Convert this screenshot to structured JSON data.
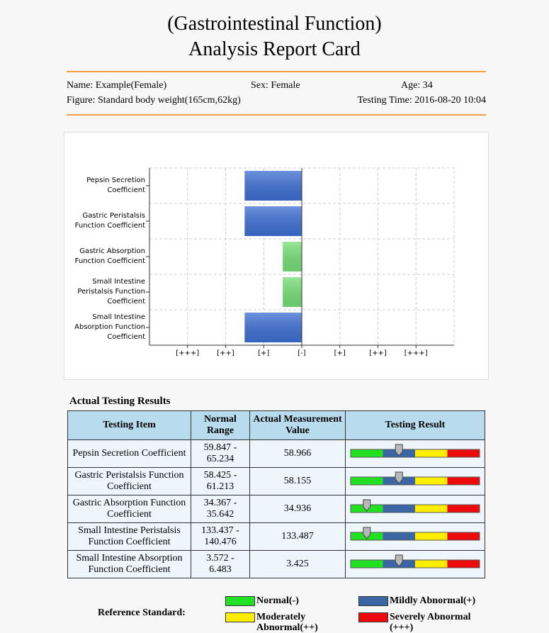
{
  "header": {
    "title": [
      "(Gastrointestinal Function)",
      "Analysis Report Card"
    ],
    "name": "Name: Example(Female)",
    "sex": "Sex: Female",
    "age": "Age: 34",
    "figure": "Figure: Standard body weight(165cm,62kg)",
    "testing_time": "Testing Time: 2016-08-20 10:04"
  },
  "chart_data": {
    "type": "hbar",
    "categories": [
      "Pepsin Secretion Coefficient",
      "Gastric Peristalsis Function Coefficient",
      "Gastric Absorption Function Coefficient",
      "Small Intestine Peristalsis Function Coefficient",
      "Small Intestine Absorption Function Coefficient"
    ],
    "values": [
      -1.5,
      -1.5,
      -0.5,
      -0.5,
      -1.5
    ],
    "colors": [
      "#3d70d4",
      "#3d70d4",
      "#77e077",
      "#77e077",
      "#3d70d4"
    ],
    "xlim": [
      -4,
      4
    ],
    "xticks": [
      {
        "value": -3,
        "label": "[+++]"
      },
      {
        "value": -2,
        "label": "[++]"
      },
      {
        "value": -1,
        "label": "[+]"
      },
      {
        "value": 0,
        "label": "[-]"
      },
      {
        "value": 1,
        "label": "[+]"
      },
      {
        "value": 2,
        "label": "[++]"
      },
      {
        "value": 3,
        "label": "[+++]"
      }
    ],
    "grid": true
  },
  "table": {
    "title": "Actual Testing Results",
    "header": [
      "Testing Item",
      "Normal Range",
      "Actual Measurement Value",
      "Testing Result"
    ],
    "rows": [
      {
        "item": "Pepsin Secretion Coefficient",
        "range": "59.847 - 65.234",
        "value": "58.966",
        "result_position": 1.5
      },
      {
        "item": "Gastric Peristalsis Function Coefficient",
        "range": "58.425 - 61.213",
        "value": "58.155",
        "result_position": 1.5
      },
      {
        "item": "Gastric Absorption Function Coefficient",
        "range": "34.367 - 35.642",
        "value": "34.936",
        "result_position": 0.5
      },
      {
        "item": "Small Intestine Peristalsis Function Coefficient",
        "range": "133.437 - 140.476",
        "value": "133.487",
        "result_position": 0.5
      },
      {
        "item": "Small Intestine Absorption Function Coefficient",
        "range": "3.572 - 6.483",
        "value": "3.425",
        "result_position": 1.5
      }
    ],
    "result_xlim": [
      0,
      4
    ]
  },
  "legend": {
    "title": "Reference Standard:",
    "items": [
      {
        "label": "Normal(-)",
        "color": "#22e022"
      },
      {
        "label": "Mildly Abnormal(+)",
        "color": "#3b66a6"
      },
      {
        "label": "Moderately Abnormal(++)",
        "color": "#ffee00"
      },
      {
        "label": "Severely Abnormal (+++)",
        "color": "#ee0a0a"
      }
    ]
  }
}
